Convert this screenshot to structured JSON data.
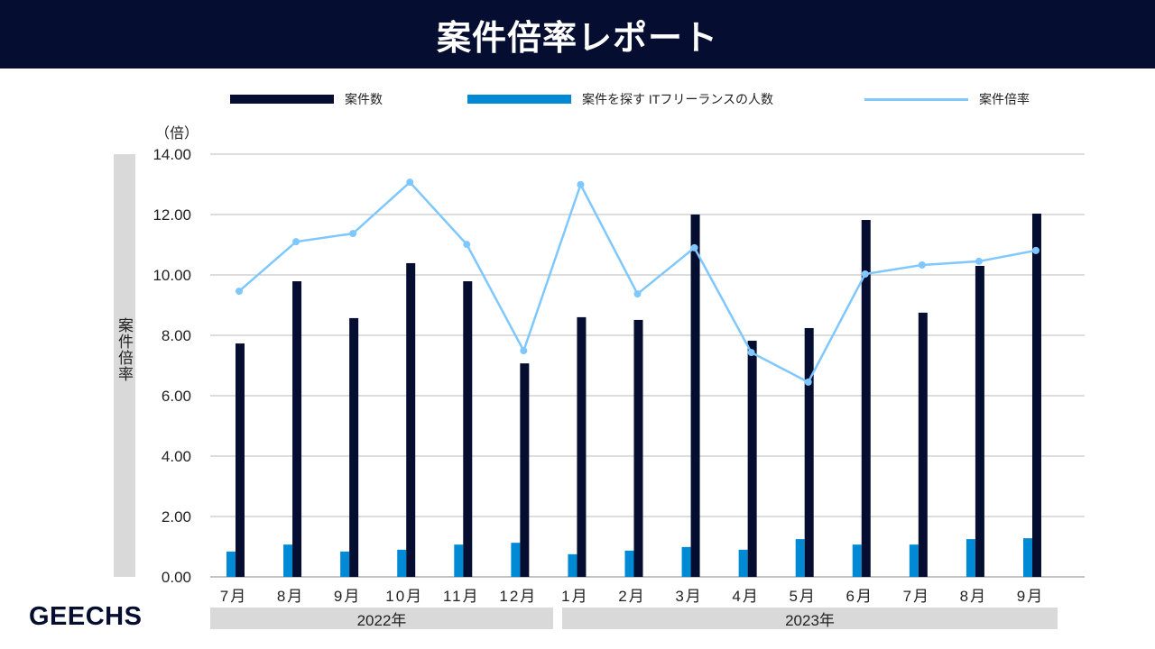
{
  "header": {
    "title": "案件倍率レポート"
  },
  "logo": "GEECHS",
  "chart_data": {
    "type": "bar",
    "title": "案件倍率レポート",
    "ylabel": "案件倍率",
    "yunit": "（倍）",
    "ylim": [
      0,
      14
    ],
    "yticks": [
      "0.00",
      "2.00",
      "4.00",
      "6.00",
      "8.00",
      "10.00",
      "12.00",
      "14.00"
    ],
    "grid": true,
    "legend_position": "top",
    "categories": [
      "7月",
      "8月",
      "9月",
      "10月",
      "11月",
      "12月",
      "1月",
      "2月",
      "3月",
      "4月",
      "5月",
      "6月",
      "7月",
      "8月",
      "9月"
    ],
    "year_groups": [
      {
        "label": "2022年",
        "count": 6
      },
      {
        "label": "2023年",
        "count": 9
      }
    ],
    "series": [
      {
        "name": "案件数",
        "type": "bar",
        "color": "#050d30",
        "values": [
          7.73,
          9.79,
          8.57,
          10.39,
          9.79,
          7.07,
          8.6,
          8.51,
          12.0,
          7.82,
          8.24,
          11.82,
          8.75,
          10.3,
          12.03
        ]
      },
      {
        "name": "案件を探す ITフリーランスの人数",
        "type": "bar",
        "color": "#008ad6",
        "values": [
          0.84,
          1.07,
          0.84,
          0.9,
          1.07,
          1.13,
          0.75,
          0.87,
          0.99,
          0.9,
          1.25,
          1.07,
          1.07,
          1.25,
          1.28
        ]
      },
      {
        "name": "案件倍率",
        "type": "line",
        "color": "#7fc8ff",
        "values": [
          9.46,
          11.1,
          11.37,
          13.07,
          11.01,
          7.49,
          12.99,
          9.37,
          10.9,
          7.43,
          6.45,
          10.03,
          10.33,
          10.45,
          10.81
        ]
      }
    ]
  }
}
